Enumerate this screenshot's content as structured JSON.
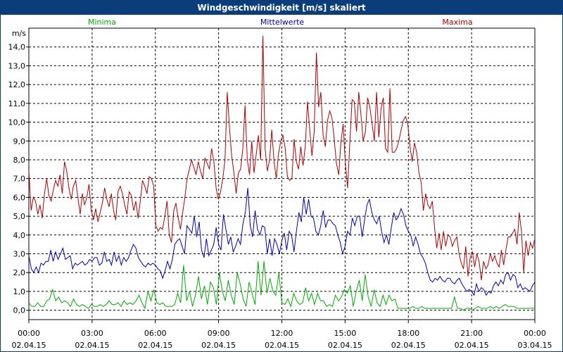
{
  "window": {
    "title": "Windgeschwindigkeit [m/s] skaliert"
  },
  "chart_data": {
    "type": "line",
    "title": "Windgeschwindigkeit [m/s] skaliert",
    "ylabel": "m/s",
    "xlabel": "",
    "ylim": [
      -0.5,
      15.0
    ],
    "xlim": [
      0,
      24
    ],
    "grid": true,
    "legend_placement": "top",
    "y_ticks": [
      "0,0",
      "1,0",
      "2,0",
      "3,0",
      "4,0",
      "5,0",
      "6,0",
      "7,0",
      "8,0",
      "9,0",
      "10,0",
      "11,0",
      "12,0",
      "13,0",
      "14,0"
    ],
    "y_tick_values": [
      0,
      1,
      2,
      3,
      4,
      5,
      6,
      7,
      8,
      9,
      10,
      11,
      12,
      13,
      14
    ],
    "x_tick_hours": [
      0,
      3,
      6,
      9,
      12,
      15,
      18,
      21,
      24
    ],
    "x_tick_times": [
      "00:00",
      "03:00",
      "06:00",
      "09:00",
      "12:00",
      "15:00",
      "18:00",
      "21:00",
      "00:00"
    ],
    "x_tick_dates": [
      "02.04.15",
      "02.04.15",
      "02.04.15",
      "02.04.15",
      "02.04.15",
      "02.04.15",
      "02.04.15",
      "02.04.15",
      "03.04.15"
    ],
    "series": [
      {
        "name": "Minima",
        "color": "#00aa00",
        "values": [
          0.4,
          0.2,
          0.2,
          0.4,
          0.2,
          0.2,
          0.5,
          0.6,
          1.1,
          0.5,
          0.7,
          0.4,
          0.5,
          0.4,
          0.2,
          0.6,
          0.3,
          0.2,
          0.3,
          0.2,
          0.1,
          0.3,
          0.2,
          0.2,
          0.3,
          0.2,
          0.3,
          0.5,
          0.3,
          0.3,
          0.4,
          0.2,
          0.5,
          0.3,
          0.4,
          0.3,
          0.5,
          0.8,
          0.4,
          0.1,
          1.0,
          0.5,
          1.1,
          0.4,
          0.3,
          0.4,
          0.2,
          0.2,
          0.2,
          0.3,
          0.9,
          0.4,
          2.4,
          0.5,
          1.0,
          0.2,
          0.8,
          1.8,
          0.6,
          1.3,
          0.3,
          1.5,
          1.2,
          0.3,
          2.0,
          1.0,
          0.5,
          1.6,
          0.8,
          0.3,
          2.0,
          1.4,
          0.6,
          0.2,
          1.5,
          0.9,
          0.3,
          2.6,
          0.8,
          2.6,
          0.9,
          1.7,
          1.0,
          0.8,
          2.0,
          0.4,
          0.3,
          0.6,
          0.2,
          0.9,
          0.5,
          0.3,
          0.4,
          1.2,
          0.5,
          0.9,
          0.3,
          0.9,
          0.5,
          0.5,
          0.2,
          0.3,
          0.2,
          0.8,
          0.5,
          0.7,
          1.1,
          0.9,
          1.3,
          0.2,
          1.0,
          1.6,
          0.5,
          1.9,
          0.7,
          0.2,
          1.1,
          0.4,
          0.2,
          0.8,
          0.3,
          0.8,
          0.5,
          0.6,
          0.1,
          0.1,
          0.1,
          0.1,
          0.1,
          0.2,
          0.1,
          0.1,
          0.2,
          0.1,
          0.1,
          0.1,
          0.1,
          0.1,
          0.1,
          0.1,
          0.1,
          0.1,
          0.1,
          0.7,
          0.1,
          0.1,
          0.0,
          0.1,
          0.1,
          0.0,
          0.1,
          0.2,
          0.1,
          0.1,
          0.1,
          0.2,
          0.1,
          0.2,
          0.1,
          0.2,
          0.3,
          0.2,
          0.2,
          0.2,
          0.1,
          0.1,
          0.1,
          0.1,
          0.1,
          0.1,
          0.1
        ]
      },
      {
        "name": "Mittelwerte",
        "color": "#0000aa",
        "values": [
          2.9,
          2.2,
          2.0,
          2.3,
          2.0,
          2.5,
          2.4,
          2.6,
          2.6,
          3.2,
          2.6,
          3.1,
          2.7,
          3.0,
          3.3,
          2.7,
          2.8,
          2.9,
          2.2,
          2.5,
          2.4,
          2.5,
          2.6,
          2.4,
          2.5,
          2.7,
          2.6,
          2.8,
          2.8,
          2.4,
          2.5,
          3.1,
          2.6,
          2.7,
          2.4,
          3.1,
          2.6,
          2.9,
          2.4,
          2.8,
          2.6,
          2.8,
          3.2,
          3.5,
          3.3,
          2.8,
          2.6,
          2.4,
          2.3,
          2.5,
          2.4,
          2.5,
          2.4,
          2.2,
          2.1,
          1.7,
          2.1,
          2.6,
          2.2,
          2.7,
          3.5,
          3.7,
          3.8,
          3.4,
          3.0,
          4.5,
          4.3,
          4.1,
          5.0,
          3.9,
          4.7,
          3.2,
          2.8,
          3.8,
          2.9,
          3.2,
          3.5,
          4.4,
          3.5,
          3.2,
          5.1,
          4.3,
          3.5,
          3.9,
          3.1,
          3.4,
          3.8,
          3.5,
          4.6,
          5.2,
          6.5,
          4.5,
          3.9,
          5.3,
          4.3,
          4.0,
          4.5,
          4.4,
          3.0,
          3.8,
          2.9,
          3.8,
          3.5,
          3.0,
          3.7,
          4.1,
          3.2,
          4.2,
          4.0,
          3.1,
          4.2,
          5.2,
          4.7,
          6.0,
          5.1,
          5.9,
          5.0,
          4.9,
          4.2,
          4.0,
          4.5,
          5.3,
          4.4,
          4.8,
          4.8,
          4.6,
          4.5,
          4.0,
          3.6,
          3.0,
          3.4,
          4.2,
          4.0,
          4.9,
          4.5,
          5.0,
          5.0,
          3.9,
          4.8,
          5.6,
          5.9,
          5.2,
          4.8,
          4.6,
          5.0,
          4.2,
          3.6,
          4.0,
          3.5,
          4.4,
          5.2,
          4.8,
          5.0,
          5.4,
          5.1,
          4.5,
          4.2,
          4.0,
          3.4,
          3.9,
          3.5,
          3.0,
          2.8,
          2.5,
          2.0,
          1.6,
          1.5,
          1.7,
          1.6,
          1.8,
          1.6,
          1.5,
          1.7,
          1.7,
          1.5,
          1.4,
          1.6,
          1.7,
          1.4,
          1.2,
          1.0,
          1.1,
          1.0,
          0.8,
          1.4,
          1.0,
          1.2,
          1.1,
          0.8,
          1.0,
          0.9,
          1.3,
          1.5,
          1.3,
          1.6,
          1.4,
          1.9,
          2.0,
          1.6,
          1.9,
          1.8,
          1.2,
          1.4,
          1.1,
          1.2,
          1.1,
          1.0,
          1.3,
          1.5
        ]
      },
      {
        "name": "Maxima",
        "color": "#aa0000",
        "values": [
          7.4,
          5.3,
          6.0,
          5.8,
          5.1,
          5.6,
          4.9,
          6.2,
          7.0,
          6.1,
          5.8,
          6.4,
          6.9,
          6.6,
          7.2,
          6.2,
          7.9,
          7.4,
          6.5,
          5.9,
          6.6,
          6.9,
          6.0,
          5.1,
          6.2,
          5.6,
          6.0,
          6.7,
          5.3,
          4.8,
          5.4,
          4.7,
          5.2,
          5.7,
          6.5,
          5.9,
          5.5,
          6.2,
          5.3,
          4.8,
          6.3,
          6.6,
          6.2,
          5.6,
          5.1,
          6.3,
          6.1,
          5.3,
          5.8,
          4.9,
          5.8,
          6.9,
          6.6,
          6.2,
          7.1,
          7.0,
          6.6,
          4.5,
          4.2,
          4.4,
          4.3,
          5.0,
          5.8,
          4.0,
          3.6,
          5.3,
          5.7,
          4.9,
          4.3,
          5.2,
          6.0,
          7.0,
          7.5,
          8.0,
          7.6,
          7.2,
          7.9,
          7.4,
          7.0,
          8.1,
          7.8,
          7.5,
          8.6,
          7.9,
          6.5,
          5.9,
          6.3,
          7.0,
          8.0,
          11.6,
          9.7,
          8.2,
          7.3,
          6.2,
          7.3,
          7.5,
          8.6,
          10.9,
          8.0,
          7.2,
          9.0,
          7.3,
          8.3,
          9.3,
          8.0,
          14.6,
          8.6,
          7.4,
          8.0,
          9.6,
          7.9,
          7.0,
          8.3,
          9.0,
          9.3,
          8.6,
          7.1,
          6.9,
          7.0,
          9.1,
          7.9,
          7.5,
          8.7,
          7.7,
          8.7,
          11.1,
          9.6,
          8.2,
          9.5,
          13.7,
          10.8,
          11.6,
          9.3,
          8.7,
          10.1,
          10.6,
          10.2,
          9.1,
          7.8,
          7.2,
          8.9,
          9.9,
          7.8,
          6.5,
          8.9,
          11.2,
          11.1,
          9.5,
          11.6,
          10.4,
          9.0,
          9.5,
          11.3,
          10.8,
          9.9,
          9.0,
          11.6,
          9.2,
          10.7,
          11.3,
          8.6,
          8.4,
          11.8,
          8.4,
          8.4,
          8.6,
          9.0,
          9.6,
          10.1,
          10.3,
          9.9,
          8.7,
          7.9,
          8.9,
          8.4,
          7.3,
          6.8,
          5.3,
          6.2,
          5.6,
          5.4,
          5.8,
          4.4,
          3.3,
          4.1,
          3.2,
          4.2,
          3.4,
          4.0,
          3.9,
          3.4,
          3.7,
          3.9,
          3.0,
          2.5,
          2.2,
          3.4,
          1.8,
          2.8,
          3.1,
          2.3,
          3.0,
          2.6,
          1.6,
          2.6,
          2.2,
          2.4,
          3.0,
          2.6,
          2.9,
          2.5,
          2.3,
          3.2,
          2.4,
          3.2,
          3.9,
          3.9,
          4.1,
          4.3,
          3.5,
          5.2,
          4.2,
          2.0,
          3.7,
          2.9,
          3.6,
          3.3,
          3.8
        ]
      }
    ]
  }
}
